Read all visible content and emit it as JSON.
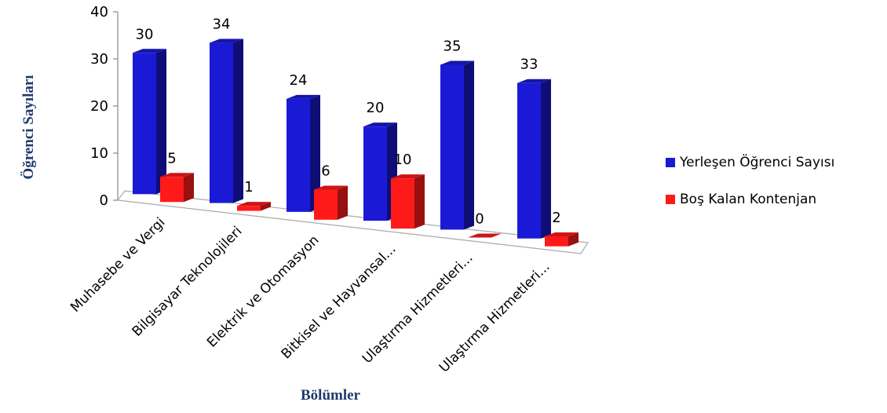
{
  "chart_data": {
    "type": "bar",
    "title": "",
    "xlabel": "Bölümler",
    "ylabel": "Öğrenci Sayıları",
    "ylim": [
      0,
      40
    ],
    "yticks": [
      0,
      10,
      20,
      30,
      40
    ],
    "categories": [
      "Muhasebe ve Vergi",
      "Bilgisayar Teknolojileri",
      "Elektrik ve Otomasyon",
      "Bitkisel ve Hayvansal...",
      "Ulaştırma Hizmetleri...",
      "Ulaştırma Hizmetleri..."
    ],
    "series": [
      {
        "name": "Yerleşen Öğrenci Sayısı",
        "color": "#1a1ad6",
        "values": [
          30,
          34,
          24,
          20,
          35,
          33
        ]
      },
      {
        "name": "Boş Kalan Kontenjan",
        "color": "#ff1a1a",
        "values": [
          5,
          1,
          6,
          10,
          0,
          2
        ]
      }
    ],
    "legend_position": "right",
    "three_d": true
  }
}
